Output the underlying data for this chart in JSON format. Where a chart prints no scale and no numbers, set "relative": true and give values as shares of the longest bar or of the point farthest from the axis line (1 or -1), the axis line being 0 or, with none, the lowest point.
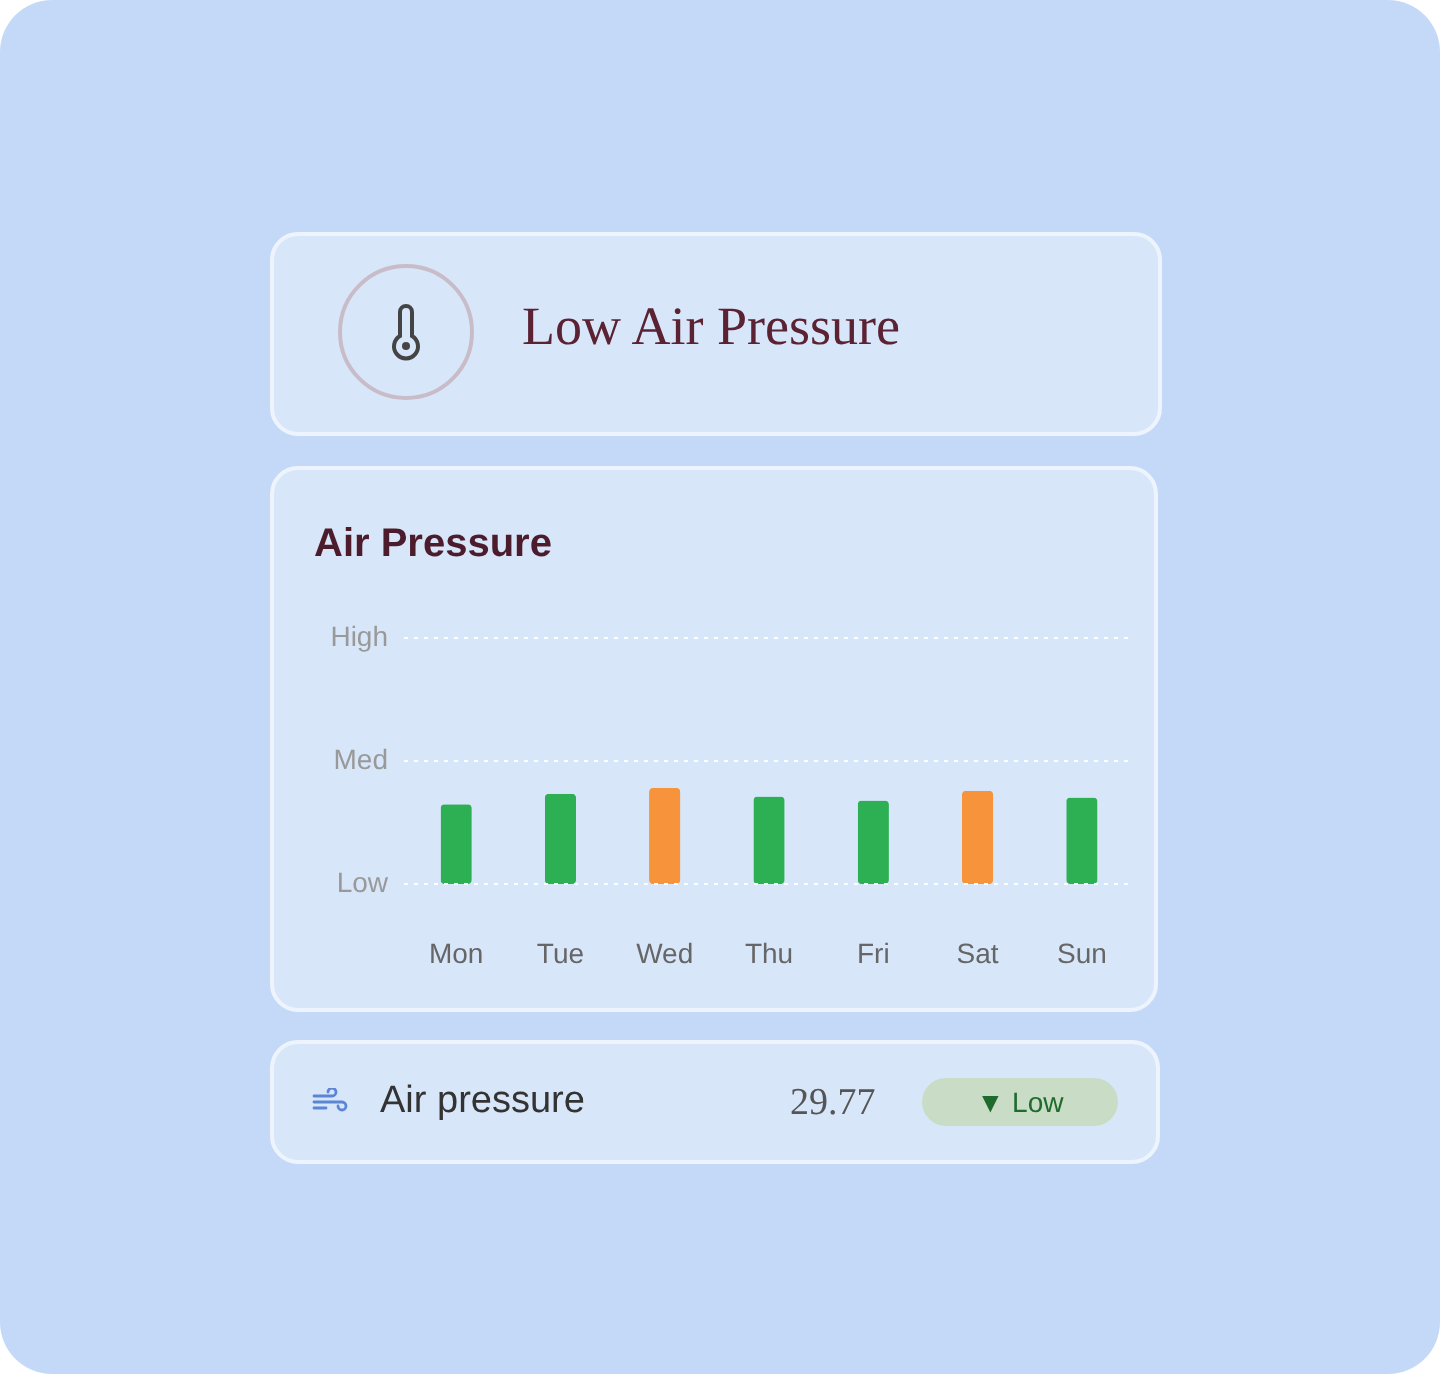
{
  "chart_data": {
    "type": "bar",
    "title": "Air Pressure",
    "categories": [
      "Mon",
      "Tue",
      "Wed",
      "Thu",
      "Fri",
      "Sat",
      "Sun"
    ],
    "values": [
      0.83,
      0.94,
      1,
      0.91,
      0.87,
      0.97,
      0.9
    ],
    "colors": [
      "#2db053",
      "#2db053",
      "#f7933a",
      "#2db053",
      "#2db053",
      "#f7933a",
      "#2db053"
    ],
    "relative": true,
    "ref_lines": [
      {
        "axis": "y",
        "value": 0,
        "label": "Low",
        "color": "#ffffff",
        "line_style": "dotted"
      },
      {
        "axis": "y",
        "value": 1.28,
        "label": "Med",
        "color": "#ffffff",
        "line_style": "dotted"
      },
      {
        "axis": "y",
        "value": 2.56,
        "label": "High",
        "color": "#ffffff",
        "line_style": "dotted"
      }
    ],
    "legend": false,
    "annotations": [
      "Low Air Pressure",
      "Air pressure",
      "29.77",
      "▼ Low"
    ]
  }
}
